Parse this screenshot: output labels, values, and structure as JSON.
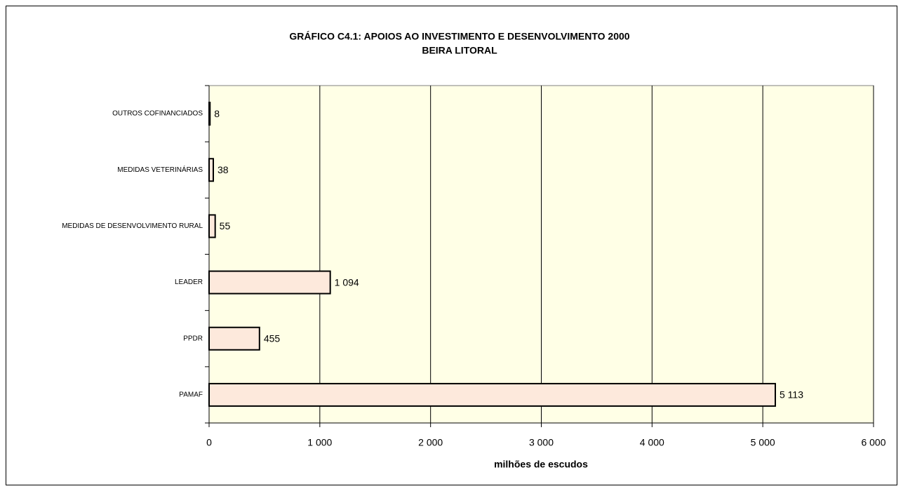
{
  "chart_data": {
    "type": "bar",
    "orientation": "horizontal",
    "title": "GRÁFICO C4.1: APOIOS AO INVESTIMENTO E DESENVOLVIMENTO 2000",
    "subtitle": "BEIRA LITORAL",
    "x_label": "milhões de escudos",
    "categories": [
      "OUTROS COFINANCIADOS",
      "MEDIDAS VETERINÁRIAS",
      "MEDIDAS DE DESENVOLVIMENTO RURAL",
      "LEADER",
      "PPDR",
      "PAMAF"
    ],
    "values": [
      8,
      38,
      55,
      1094,
      455,
      5113
    ],
    "value_labels": [
      "8",
      "38",
      "55",
      "1 094",
      "455",
      "5 113"
    ],
    "color": "#fde9dc",
    "xlim": [
      0,
      6000
    ],
    "xticks": [
      0,
      {
        "value": 1000,
        "label": "1 000"
      },
      {
        "value": 2000,
        "label": "2 000"
      },
      {
        "value": 3000,
        "label": "3 000"
      },
      {
        "value": 4000,
        "label": "4 000"
      },
      {
        "value": 5000,
        "label": "5 000"
      },
      {
        "value": 6000,
        "label": "6 000"
      }
    ],
    "grid": true
  }
}
